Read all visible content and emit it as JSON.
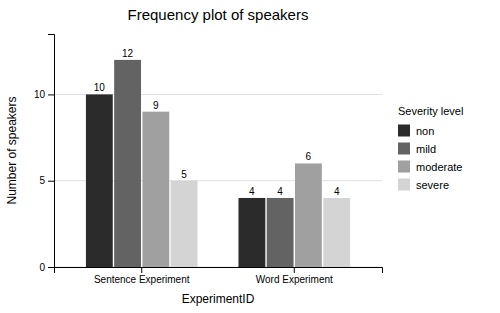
{
  "chart_data": {
    "type": "bar",
    "title": "Frequency plot of speakers",
    "x_label": "ExperimentID",
    "y_label": "Number of speakers",
    "legend_title": "Severity level",
    "categories": [
      "Sentence Experiment",
      "Word Experiment"
    ],
    "series": [
      {
        "name": "non",
        "color": "#2b2b2b",
        "values": [
          10,
          4
        ]
      },
      {
        "name": "mild",
        "color": "#636363",
        "values": [
          12,
          4
        ]
      },
      {
        "name": "moderate",
        "color": "#a0a0a0",
        "values": [
          9,
          6
        ]
      },
      {
        "name": "severe",
        "color": "#d4d4d4",
        "values": [
          5,
          4
        ]
      }
    ],
    "ylim": [
      0,
      13.5
    ],
    "yticks": [
      0,
      5,
      10
    ],
    "grid": true,
    "legend": "right",
    "data_labels": true
  }
}
